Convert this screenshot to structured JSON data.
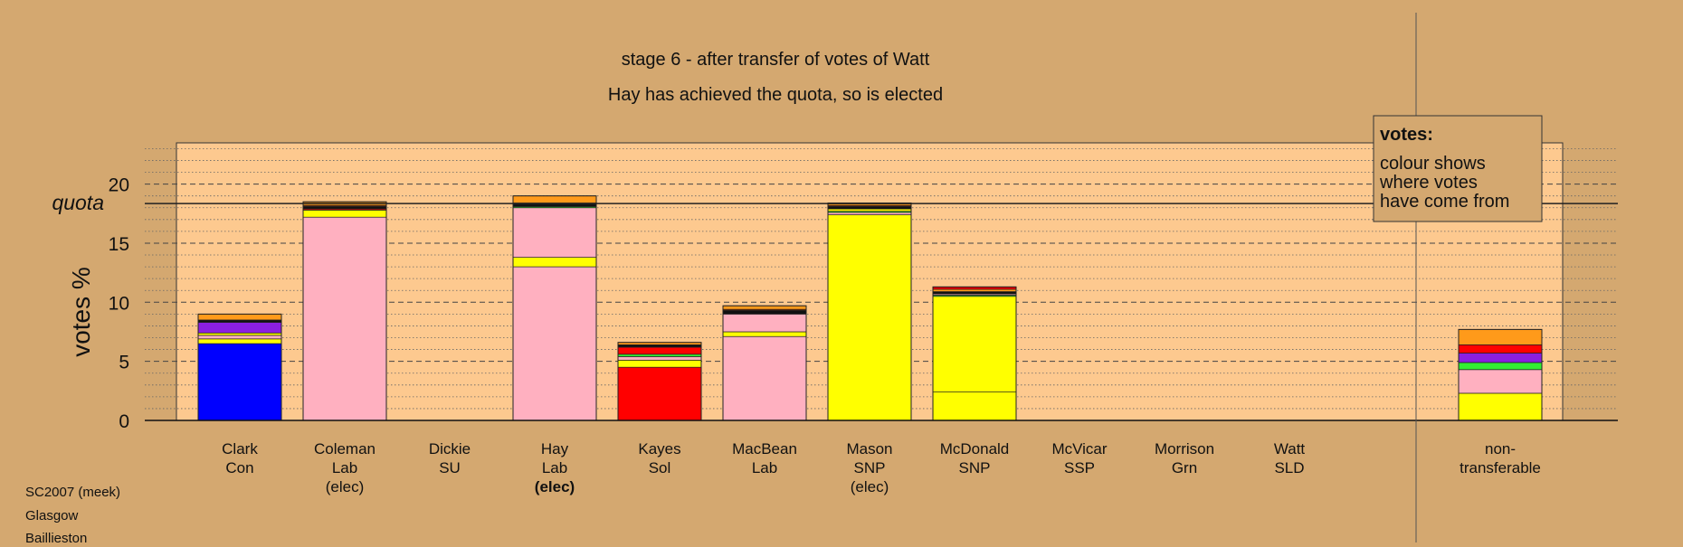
{
  "titles": {
    "line1": "stage 6 - after transfer of votes of Watt",
    "line2": "Hay has achieved the quota, so is elected"
  },
  "legend_box": {
    "title": "votes:",
    "lines": [
      "colour shows",
      "where votes",
      "have come from"
    ]
  },
  "footer": {
    "lines": [
      "SC2007 (meek)",
      "Glasgow",
      "Baillieston"
    ]
  },
  "colors": {
    "background": "#d4a870",
    "plot_area": "#fdc98f",
    "Con": "#0000ff",
    "Lab": "#ffb0c0",
    "SNP": "#ffff00",
    "Sol": "#ff0000",
    "SSP": "#8b1fe0",
    "Grn": "#33ee33",
    "SLD": "#ff9a1a",
    "SU": "#7a2a00",
    "misc_dark": "#111111"
  },
  "chart_data": {
    "type": "bar",
    "stacked": true,
    "ylabel": "votes %",
    "ylim": [
      0,
      23
    ],
    "yticks": [
      0,
      5,
      10,
      15,
      20
    ],
    "quota": {
      "label": "quota",
      "value": 18.35
    },
    "grid": "dashed horizontal lines at every 5, dotted at every 1",
    "legend_placement": "top-right",
    "categories": [
      {
        "name": "Clark",
        "party": "Con",
        "status": ""
      },
      {
        "name": "Coleman",
        "party": "Lab",
        "status": "(elec)"
      },
      {
        "name": "Dickie",
        "party": "SU",
        "status": ""
      },
      {
        "name": "Hay",
        "party": "Lab",
        "status": "(elec)",
        "status_bold": true
      },
      {
        "name": "Kayes",
        "party": "Sol",
        "status": ""
      },
      {
        "name": "MacBean",
        "party": "Lab",
        "status": ""
      },
      {
        "name": "Mason",
        "party": "SNP",
        "status": "(elec)"
      },
      {
        "name": "McDonald",
        "party": "SNP",
        "status": ""
      },
      {
        "name": "McVicar",
        "party": "SSP",
        "status": ""
      },
      {
        "name": "Morrison",
        "party": "Grn",
        "status": ""
      },
      {
        "name": "Watt",
        "party": "SLD",
        "status": ""
      },
      {
        "name": "non-",
        "party": "transferable",
        "status": "",
        "separate": true
      }
    ],
    "bars": [
      [
        [
          "Con",
          6.5
        ],
        [
          "SNP",
          0.4
        ],
        [
          "Lab",
          0.3
        ],
        [
          "SNP",
          0.2
        ],
        [
          "SSP",
          0.9
        ],
        [
          "misc_dark",
          0.2
        ],
        [
          "SLD",
          0.5
        ]
      ],
      [
        [
          "Lab",
          17.2
        ],
        [
          "SNP",
          0.6
        ],
        [
          "Sol",
          0.1
        ],
        [
          "misc_dark",
          0.2
        ],
        [
          "SU",
          0.1
        ],
        [
          "SLD",
          0.3
        ]
      ],
      [],
      [
        [
          "Lab",
          13.0
        ],
        [
          "SNP",
          0.8
        ],
        [
          "Lab",
          4.2
        ],
        [
          "Grn",
          0.1
        ],
        [
          "misc_dark",
          0.2
        ],
        [
          "SU",
          0.1
        ],
        [
          "SLD",
          0.6
        ]
      ],
      [
        [
          "Sol",
          4.5
        ],
        [
          "SNP",
          0.6
        ],
        [
          "Lab",
          0.3
        ],
        [
          "Grn",
          0.2
        ],
        [
          "Sol",
          0.6
        ],
        [
          "misc_dark",
          0.2
        ],
        [
          "SLD",
          0.2
        ]
      ],
      [
        [
          "Lab",
          7.1
        ],
        [
          "SNP",
          0.4
        ],
        [
          "Lab",
          1.5
        ],
        [
          "misc_dark",
          0.3
        ],
        [
          "SU",
          0.1
        ],
        [
          "SLD",
          0.3
        ]
      ],
      [
        [
          "SNP",
          17.4
        ],
        [
          "Lab",
          0.2
        ],
        [
          "Grn",
          0.1
        ],
        [
          "SNP",
          0.2
        ],
        [
          "misc_dark",
          0.2
        ],
        [
          "SU",
          0.1
        ],
        [
          "SLD",
          0.2
        ]
      ],
      [
        [
          "SNP",
          2.4
        ],
        [
          "SNP",
          8.1
        ],
        [
          "Grn",
          0.1
        ],
        [
          "Lab",
          0.1
        ],
        [
          "misc_dark",
          0.2
        ],
        [
          "SLD",
          0.2
        ],
        [
          "Sol",
          0.2
        ]
      ],
      [],
      [],
      [],
      [
        [
          "SNP",
          2.3
        ],
        [
          "Lab",
          2.0
        ],
        [
          "Grn",
          0.6
        ],
        [
          "SSP",
          0.8
        ],
        [
          "Sol",
          0.7
        ],
        [
          "SLD",
          1.3
        ]
      ]
    ]
  }
}
